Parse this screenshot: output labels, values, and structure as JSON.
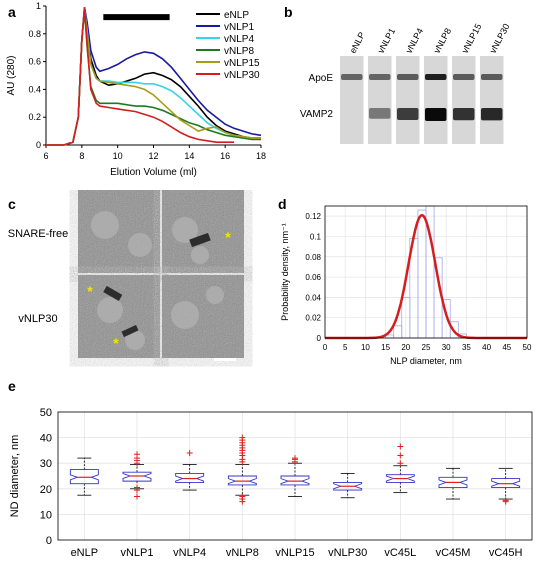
{
  "panels": {
    "a": {
      "label": "a",
      "chart_data": {
        "type": "line",
        "xlabel": "Elution Volume (ml)",
        "ylabel": "AU (280)",
        "xlim": [
          6,
          18
        ],
        "ylim": [
          0,
          1
        ],
        "xticks": [
          "6",
          "8",
          "10",
          "12",
          "14",
          "16",
          "18"
        ],
        "yticks": [
          "0",
          "0.2",
          "0.4",
          "0.6",
          "0.8",
          "1"
        ],
        "bar_annotation": {
          "x_start": 9.2,
          "x_end": 12.9,
          "y": 0.92
        },
        "legend_position": "top-right",
        "series": [
          {
            "name": "eNLP",
            "color": "#000000",
            "x": [
              6,
              7,
              7.5,
              7.8,
              8,
              8.15,
              8.3,
              8.5,
              8.8,
              9,
              9.5,
              10,
              10.5,
              11,
              11.5,
              12,
              12.5,
              13,
              13.5,
              14,
              14.5,
              15,
              15.5,
              16,
              16.5,
              17,
              17.5,
              18
            ],
            "y": [
              0,
              0,
              0.02,
              0.2,
              0.75,
              0.99,
              0.85,
              0.62,
              0.5,
              0.46,
              0.43,
              0.44,
              0.46,
              0.48,
              0.51,
              0.52,
              0.5,
              0.47,
              0.42,
              0.35,
              0.28,
              0.2,
              0.14,
              0.1,
              0.08,
              0.06,
              0.05,
              0.05
            ]
          },
          {
            "name": "vNLP1",
            "color": "#1a1aa0",
            "x": [
              6,
              7,
              7.5,
              7.8,
              8,
              8.15,
              8.3,
              8.5,
              8.8,
              9,
              9.5,
              10,
              10.5,
              11,
              11.5,
              12,
              12.5,
              13,
              13.5,
              14,
              14.5,
              15,
              15.5,
              16,
              16.5,
              17,
              17.5,
              18
            ],
            "y": [
              0,
              0,
              0.02,
              0.2,
              0.75,
              0.99,
              0.88,
              0.68,
              0.56,
              0.53,
              0.55,
              0.58,
              0.62,
              0.65,
              0.67,
              0.66,
              0.62,
              0.56,
              0.48,
              0.4,
              0.32,
              0.25,
              0.2,
              0.15,
              0.12,
              0.1,
              0.08,
              0.07
            ]
          },
          {
            "name": "vNLP4",
            "color": "#33d6e6",
            "x": [
              6,
              7,
              7.5,
              7.8,
              8,
              8.15,
              8.3,
              8.5,
              8.8,
              9,
              9.5,
              10,
              10.5,
              11,
              11.5,
              12,
              12.5,
              13,
              13.5,
              14,
              14.5,
              15,
              15.5,
              16,
              16.5,
              17,
              17.5,
              18
            ],
            "y": [
              0,
              0,
              0.02,
              0.2,
              0.75,
              0.98,
              0.82,
              0.58,
              0.48,
              0.46,
              0.46,
              0.45,
              0.45,
              0.45,
              0.44,
              0.44,
              0.42,
              0.39,
              0.34,
              0.28,
              0.22,
              0.16,
              0.12,
              0.09,
              0.07,
              0.06,
              0.05,
              0.05
            ]
          },
          {
            "name": "vNLP8",
            "color": "#1f7a1f",
            "x": [
              6,
              7,
              7.5,
              7.8,
              8,
              8.15,
              8.3,
              8.5,
              8.8,
              9,
              9.5,
              10,
              10.5,
              11,
              11.5,
              12,
              12.5,
              13,
              13.5,
              14,
              14.5,
              15,
              15.5,
              16,
              16.5,
              17,
              17.5,
              18
            ],
            "y": [
              0,
              0,
              0.02,
              0.2,
              0.75,
              0.97,
              0.7,
              0.42,
              0.32,
              0.3,
              0.3,
              0.3,
              0.29,
              0.28,
              0.28,
              0.27,
              0.25,
              0.22,
              0.19,
              0.16,
              0.14,
              0.11,
              0.09,
              0.07,
              0.06,
              0.05,
              0.04,
              0.04
            ]
          },
          {
            "name": "vNLP15",
            "color": "#a89a1c",
            "x": [
              6,
              7,
              7.5,
              7.8,
              8,
              8.15,
              8.3,
              8.5,
              8.8,
              9,
              9.5,
              10,
              10.5,
              11,
              11.5,
              12,
              12.5,
              13,
              13.5,
              14,
              14.5,
              15,
              15.5,
              16,
              16.5,
              17,
              17.5,
              18
            ],
            "y": [
              0,
              0,
              0.02,
              0.2,
              0.75,
              0.98,
              0.8,
              0.58,
              0.48,
              0.46,
              0.45,
              0.44,
              0.43,
              0.42,
              0.4,
              0.36,
              0.3,
              0.24,
              0.18,
              0.14,
              0.1,
              0.12,
              0.13,
              0.09,
              0.07,
              0.06,
              0.05,
              0.05
            ]
          },
          {
            "name": "vNLP30",
            "color": "#d41e1e",
            "x": [
              6,
              7,
              7.5,
              7.8,
              8,
              8.15,
              8.3,
              8.5,
              8.8,
              9,
              9.5,
              10,
              10.5,
              11,
              11.5,
              12,
              12.5,
              13,
              13.5,
              14,
              14.5,
              15,
              15.5,
              16,
              16.5
            ],
            "y": [
              0,
              0,
              0.02,
              0.2,
              0.75,
              0.99,
              0.72,
              0.4,
              0.3,
              0.28,
              0.27,
              0.26,
              0.25,
              0.24,
              0.22,
              0.2,
              0.17,
              0.13,
              0.09,
              0.06,
              0.04,
              0.03,
              0.02,
              0.02,
              0.02
            ]
          }
        ]
      }
    },
    "b": {
      "label": "b",
      "lanes": [
        "eNLP",
        "vNLP1",
        "vNLP4",
        "vNLP8",
        "vNLP15",
        "vNLP30"
      ],
      "rows": [
        {
          "name": "ApoE",
          "intensity": [
            0.55,
            0.55,
            0.6,
            0.9,
            0.6,
            0.6
          ]
        },
        {
          "name": "VAMP2",
          "intensity": [
            0.0,
            0.45,
            0.75,
            1.0,
            0.8,
            0.85
          ]
        }
      ]
    },
    "c": {
      "label": "c",
      "row_labels": [
        "SNARE-free",
        "vNLP30"
      ],
      "marker": "*"
    },
    "d": {
      "label": "d",
      "chart_data": {
        "type": "bar",
        "xlabel": "NLP diameter, nm",
        "ylabel": "Probability density, nm⁻¹",
        "xlim": [
          0,
          50
        ],
        "ylim": [
          0,
          0.13
        ],
        "xticks": [
          "0",
          "5",
          "10",
          "15",
          "20",
          "25",
          "30",
          "35",
          "40",
          "45",
          "50"
        ],
        "yticks": [
          "0",
          "0.02",
          "0.04",
          "0.06",
          "0.08",
          "0.1",
          "0.12"
        ],
        "bins": [
          {
            "x0": 15,
            "x1": 17,
            "density": 0.003
          },
          {
            "x0": 17,
            "x1": 19,
            "density": 0.012
          },
          {
            "x0": 19,
            "x1": 21,
            "density": 0.04
          },
          {
            "x0": 21,
            "x1": 23,
            "density": 0.098
          },
          {
            "x0": 23,
            "x1": 25,
            "density": 0.126
          },
          {
            "x0": 25,
            "x1": 27,
            "density": 0.13
          },
          {
            "x0": 27,
            "x1": 29,
            "density": 0.079
          },
          {
            "x0": 29,
            "x1": 31,
            "density": 0.038
          },
          {
            "x0": 31,
            "x1": 33,
            "density": 0.016
          },
          {
            "x0": 33,
            "x1": 35,
            "density": 0.004
          }
        ],
        "fit": {
          "type": "normal",
          "mean": 24,
          "sd": 3.3,
          "color": "#d41e1e"
        },
        "grid": true
      }
    },
    "e": {
      "label": "e",
      "chart_data": {
        "type": "box",
        "ylabel": "ND diameter, nm",
        "ylim": [
          0,
          50
        ],
        "yticks": [
          "0",
          "10",
          "20",
          "30",
          "40",
          "50"
        ],
        "grid": true,
        "categories": [
          "eNLP",
          "vNLP1",
          "vNLP4",
          "vNLP8",
          "vNLP15",
          "vNLP30",
          "vC45L",
          "vC45M",
          "vC45H"
        ],
        "boxes": [
          {
            "q1": 22,
            "median": 24.5,
            "q3": 27.5,
            "wlo": 17.5,
            "whi": 32,
            "outliers": []
          },
          {
            "q1": 23,
            "median": 25,
            "q3": 26.5,
            "wlo": 20,
            "whi": 29.5,
            "outliers": [
              17,
              19.5,
              20.5,
              30,
              31,
              32,
              33.5
            ]
          },
          {
            "q1": 22.5,
            "median": 24,
            "q3": 26,
            "wlo": 19.5,
            "whi": 29.5,
            "outliers": [
              34
            ]
          },
          {
            "q1": 21.5,
            "median": 23,
            "q3": 25,
            "wlo": 17.5,
            "whi": 29.5,
            "outliers": [
              15,
              16,
              17,
              30.5,
              31.5,
              33,
              34,
              35,
              36,
              37,
              38,
              39,
              40
            ]
          },
          {
            "q1": 21.5,
            "median": 23,
            "q3": 25,
            "wlo": 17,
            "whi": 30,
            "outliers": [
              30.5,
              31.5,
              32
            ]
          },
          {
            "q1": 19.5,
            "median": 21,
            "q3": 22.5,
            "wlo": 16.5,
            "whi": 26,
            "outliers": []
          },
          {
            "q1": 22.5,
            "median": 24,
            "q3": 25.5,
            "wlo": 18.5,
            "whi": 29,
            "outliers": [
              30,
              33,
              36.5
            ]
          },
          {
            "q1": 20.5,
            "median": 22.5,
            "q3": 24.5,
            "wlo": 16,
            "whi": 28,
            "outliers": []
          },
          {
            "q1": 20.5,
            "median": 22,
            "q3": 24,
            "wlo": 16,
            "whi": 28,
            "outliers": [
              15,
              15.5
            ]
          }
        ]
      }
    }
  }
}
